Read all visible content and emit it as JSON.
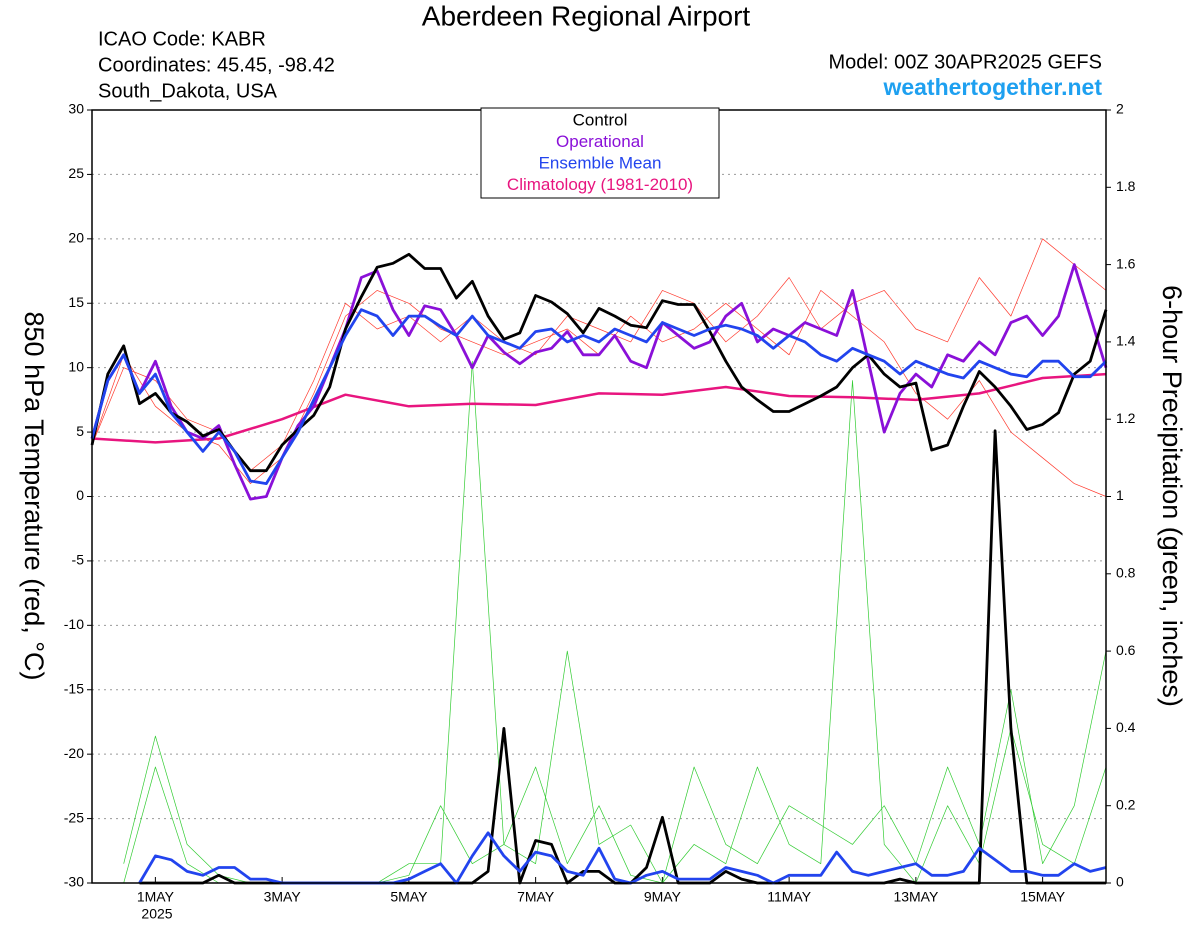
{
  "chart_data": {
    "type": "line",
    "title": "Aberdeen Regional Airport",
    "info_left": [
      "ICAO Code: KABR",
      "Coordinates: 45.45, -98.42",
      "South_Dakota, USA"
    ],
    "model": "Model: 00Z 30APR2025 GEFS",
    "source": "weathertogether.net",
    "ylabel": "850 hPa Temperature (red, °C)",
    "y2label": "6-hour Precipitation (green, inches)",
    "x_year_label": "2025",
    "xlim": [
      0,
      16
    ],
    "xticks": [
      {
        "value": 1,
        "label": "1MAY"
      },
      {
        "value": 3,
        "label": "3MAY"
      },
      {
        "value": 5,
        "label": "5MAY"
      },
      {
        "value": 7,
        "label": "7MAY"
      },
      {
        "value": 9,
        "label": "9MAY"
      },
      {
        "value": 11,
        "label": "11MAY"
      },
      {
        "value": 13,
        "label": "13MAY"
      },
      {
        "value": 15,
        "label": "15MAY"
      }
    ],
    "ylim": [
      -30,
      30
    ],
    "yticks": [
      30,
      25,
      20,
      15,
      10,
      5,
      0,
      -5,
      -10,
      -15,
      -20,
      -25,
      -30
    ],
    "y2lim": [
      0,
      2
    ],
    "y2ticks": [
      2,
      1.8,
      1.6,
      1.4,
      1.2,
      1,
      0.8,
      0.6,
      0.4,
      0.2,
      0
    ],
    "grid": true,
    "x": [
      0,
      0.25,
      0.5,
      0.75,
      1,
      1.25,
      1.5,
      1.75,
      2,
      2.25,
      2.5,
      2.75,
      3,
      3.25,
      3.5,
      3.75,
      4,
      4.25,
      4.5,
      4.75,
      5,
      5.25,
      5.5,
      5.75,
      6,
      6.25,
      6.5,
      6.75,
      7,
      7.25,
      7.5,
      7.75,
      8,
      8.25,
      8.5,
      8.75,
      9,
      9.25,
      9.5,
      9.75,
      10,
      10.25,
      10.5,
      10.75,
      11,
      11.25,
      11.5,
      11.75,
      12,
      12.25,
      12.5,
      12.75,
      13,
      13.25,
      13.5,
      13.75,
      14,
      14.25,
      14.5,
      14.75,
      15,
      15.25,
      15.5,
      15.75,
      16
    ],
    "series": [
      {
        "color": "#ff3b2f",
        "line_width": 0.7,
        "axis": "y",
        "x": [
          0,
          0.5,
          1,
          1.5,
          2,
          2.5,
          3,
          3.5,
          4,
          4.5,
          5,
          5.5,
          6,
          6.5,
          7,
          7.5,
          8,
          8.5,
          9,
          9.5,
          10,
          10.5,
          11,
          11.5,
          12,
          12.5,
          13,
          13.5,
          14,
          14.5,
          15,
          15.5,
          16
        ],
        "values": [
          4,
          11,
          7,
          5,
          4,
          1,
          3,
          8,
          14,
          16,
          15,
          13,
          12,
          11,
          12,
          13,
          11,
          14,
          12,
          13,
          15,
          13,
          11,
          16,
          14,
          12,
          8,
          6,
          9,
          5,
          3,
          1,
          0
        ]
      },
      {
        "color": "#ff3b2f",
        "line_width": 0.7,
        "axis": "y",
        "x": [
          0,
          0.5,
          1,
          1.5,
          2,
          2.5,
          3,
          3.5,
          4,
          4.5,
          5,
          5.5,
          6,
          6.5,
          7,
          7.5,
          8,
          8.5,
          9,
          9.5,
          10,
          10.5,
          11,
          11.5,
          12,
          12.5,
          13,
          13.5,
          14,
          14.5,
          15,
          15.5,
          16
        ],
        "values": [
          4,
          10,
          9,
          6,
          5,
          2,
          4,
          9,
          15,
          13,
          14,
          12,
          14,
          12,
          11,
          14,
          13,
          12,
          16,
          15,
          12,
          14,
          17,
          13,
          15,
          16,
          13,
          12,
          17,
          14,
          20,
          18,
          16
        ]
      },
      {
        "color": "#33cc33",
        "line_width": 0.7,
        "axis": "y2",
        "x": [
          0,
          0.5,
          1,
          1.5,
          2,
          2.5,
          3,
          3.5,
          4,
          4.5,
          5,
          5.5,
          6,
          6.5,
          7,
          7.5,
          8,
          8.5,
          9,
          9.5,
          10,
          10.5,
          11,
          11.5,
          12,
          12.5,
          13,
          13.5,
          14,
          14.5,
          15,
          15.5,
          16
        ],
        "values": [
          null,
          0,
          0.3,
          0.05,
          0,
          0,
          0,
          0,
          0,
          0,
          0.02,
          0.2,
          0.05,
          0.1,
          0.3,
          0.05,
          0.2,
          0.02,
          0,
          0.1,
          0.05,
          0.3,
          0.1,
          0.05,
          1.3,
          0.1,
          0,
          0.2,
          0.05,
          0.4,
          0.1,
          0.05,
          0.3
        ]
      },
      {
        "color": "#33cc33",
        "line_width": 0.7,
        "axis": "y2",
        "x": [
          0,
          0.5,
          1,
          1.5,
          2,
          2.5,
          3,
          3.5,
          4,
          4.5,
          5,
          5.5,
          6,
          6.5,
          7,
          7.5,
          8,
          8.5,
          9,
          9.5,
          10,
          10.5,
          11,
          11.5,
          12,
          12.5,
          13,
          13.5,
          14,
          14.5,
          15,
          15.5,
          16
        ],
        "values": [
          null,
          0.05,
          0.38,
          0.1,
          0.02,
          0,
          0,
          0,
          0,
          0,
          0.05,
          0.05,
          1.35,
          0.1,
          0.05,
          0.6,
          0.1,
          0.15,
          0,
          0.3,
          0.1,
          0.05,
          0.2,
          0.15,
          0.1,
          0.2,
          0.05,
          0.3,
          0.1,
          0.5,
          0.05,
          0.2,
          0.6
        ]
      },
      {
        "name": "Climatology (1981-2010)",
        "color": "#e8157f",
        "line_width": 2.5,
        "axis": "y",
        "x": [
          0,
          1,
          2,
          3,
          4,
          5,
          6,
          7,
          8,
          9,
          10,
          11,
          12,
          13,
          14,
          15,
          16
        ],
        "values": [
          4.5,
          4.2,
          4.5,
          6,
          7.9,
          7,
          7.2,
          7.1,
          8,
          7.9,
          8.5,
          7.8,
          7.7,
          7.5,
          8,
          9.2,
          9.5
        ]
      },
      {
        "name": "Operational",
        "color": "#8a10d8",
        "line_width": 2.8,
        "axis": "y",
        "values": [
          4.5,
          9,
          11,
          8,
          10.5,
          7,
          5,
          4.5,
          5.5,
          2.5,
          -0.2,
          0,
          3,
          5.5,
          7,
          10,
          13,
          17,
          17.5,
          14.5,
          12.5,
          14.8,
          14.5,
          12.5,
          10,
          12.5,
          11.2,
          10.3,
          11.2,
          11.5,
          12.8,
          11,
          11,
          12.5,
          10.5,
          10,
          13.5,
          12.5,
          11.5,
          12,
          14,
          15,
          12,
          13,
          12.5,
          13.5,
          13,
          12.5,
          16,
          10.5,
          5,
          8,
          9.5,
          8.5,
          11,
          10.5,
          12,
          11,
          13.5,
          14,
          12.5,
          14,
          18,
          14,
          10
        ]
      },
      {
        "name": "Control",
        "color": "#000000",
        "line_width": 2.8,
        "axis": "y",
        "values": [
          4,
          9.5,
          11.7,
          7.2,
          8,
          6.5,
          5.8,
          4.7,
          5.2,
          3.5,
          2,
          2,
          4,
          5.2,
          6.3,
          8.5,
          13,
          15.5,
          17.8,
          18.1,
          18.8,
          17.7,
          17.7,
          15.4,
          16.7,
          14,
          12.2,
          12.7,
          15.6,
          15.1,
          14.2,
          12.7,
          14.6,
          14,
          13.3,
          13.1,
          15.2,
          14.9,
          14.9,
          12.8,
          10.5,
          8.5,
          7.5,
          6.6,
          6.6,
          7.2,
          7.8,
          8.5,
          10,
          11,
          9.5,
          8.5,
          8.8,
          3.6,
          4,
          7,
          9.7,
          8.5,
          7,
          5.2,
          5.6,
          6.5,
          9.5,
          10.5,
          14.5
        ]
      },
      {
        "name": "Ensemble Mean",
        "color": "#2244ee",
        "line_width": 2.8,
        "axis": "y",
        "values": [
          4.5,
          9,
          11,
          8,
          9.5,
          6.5,
          5,
          3.5,
          5,
          3.5,
          1.2,
          1,
          3,
          5,
          7.5,
          10,
          12.5,
          14.5,
          14,
          12.5,
          14,
          14,
          13.2,
          12.5,
          14,
          12.5,
          12,
          11.5,
          12.8,
          13,
          12,
          12.5,
          12,
          13,
          12.5,
          12,
          13.5,
          13,
          12.5,
          13,
          13.3,
          13,
          12.5,
          11.5,
          12.5,
          12,
          11,
          10.5,
          11.5,
          11,
          10.5,
          9.5,
          10.5,
          10,
          9.5,
          9.2,
          10.5,
          10,
          9.5,
          9.3,
          10.5,
          10.5,
          9.3,
          9.3,
          10.5
        ]
      },
      {
        "color": "#000000",
        "line_width": 2.8,
        "axis": "y2",
        "values": [
          null,
          null,
          null,
          0,
          0,
          0,
          0,
          0,
          0.02,
          0,
          0,
          0,
          0,
          0,
          0,
          0,
          0,
          0,
          0,
          0,
          0,
          0,
          0,
          0,
          0,
          0.03,
          0.4,
          0,
          0.11,
          0.1,
          0,
          0.03,
          0.03,
          0,
          0,
          0.04,
          0.17,
          0,
          0,
          0,
          0.03,
          0.01,
          0,
          0,
          0,
          0,
          0,
          0,
          0,
          0,
          0,
          0.01,
          0,
          0,
          0,
          0,
          0,
          1.17,
          0.4,
          0,
          0,
          0,
          0,
          0,
          0
        ]
      },
      {
        "color": "#2244ee",
        "line_width": 2.8,
        "axis": "y2",
        "values": [
          null,
          null,
          null,
          0,
          0.07,
          0.06,
          0.03,
          0.02,
          0.04,
          0.04,
          0.01,
          0.01,
          0,
          0,
          0,
          0,
          0,
          0,
          0,
          0,
          0.01,
          0.03,
          0.05,
          0,
          0.07,
          0.13,
          0.07,
          0.03,
          0.08,
          0.07,
          0.03,
          0.02,
          0.09,
          0.01,
          0,
          0.02,
          0.03,
          0.01,
          0.01,
          0.01,
          0.04,
          0.03,
          0.02,
          0,
          0.02,
          0.02,
          0.02,
          0.08,
          0.03,
          0.02,
          0.03,
          0.04,
          0.05,
          0.02,
          0.02,
          0.03,
          0.09,
          0.06,
          0.03,
          0.03,
          0.02,
          0.02,
          0.05,
          0.03,
          0.04
        ]
      }
    ]
  }
}
